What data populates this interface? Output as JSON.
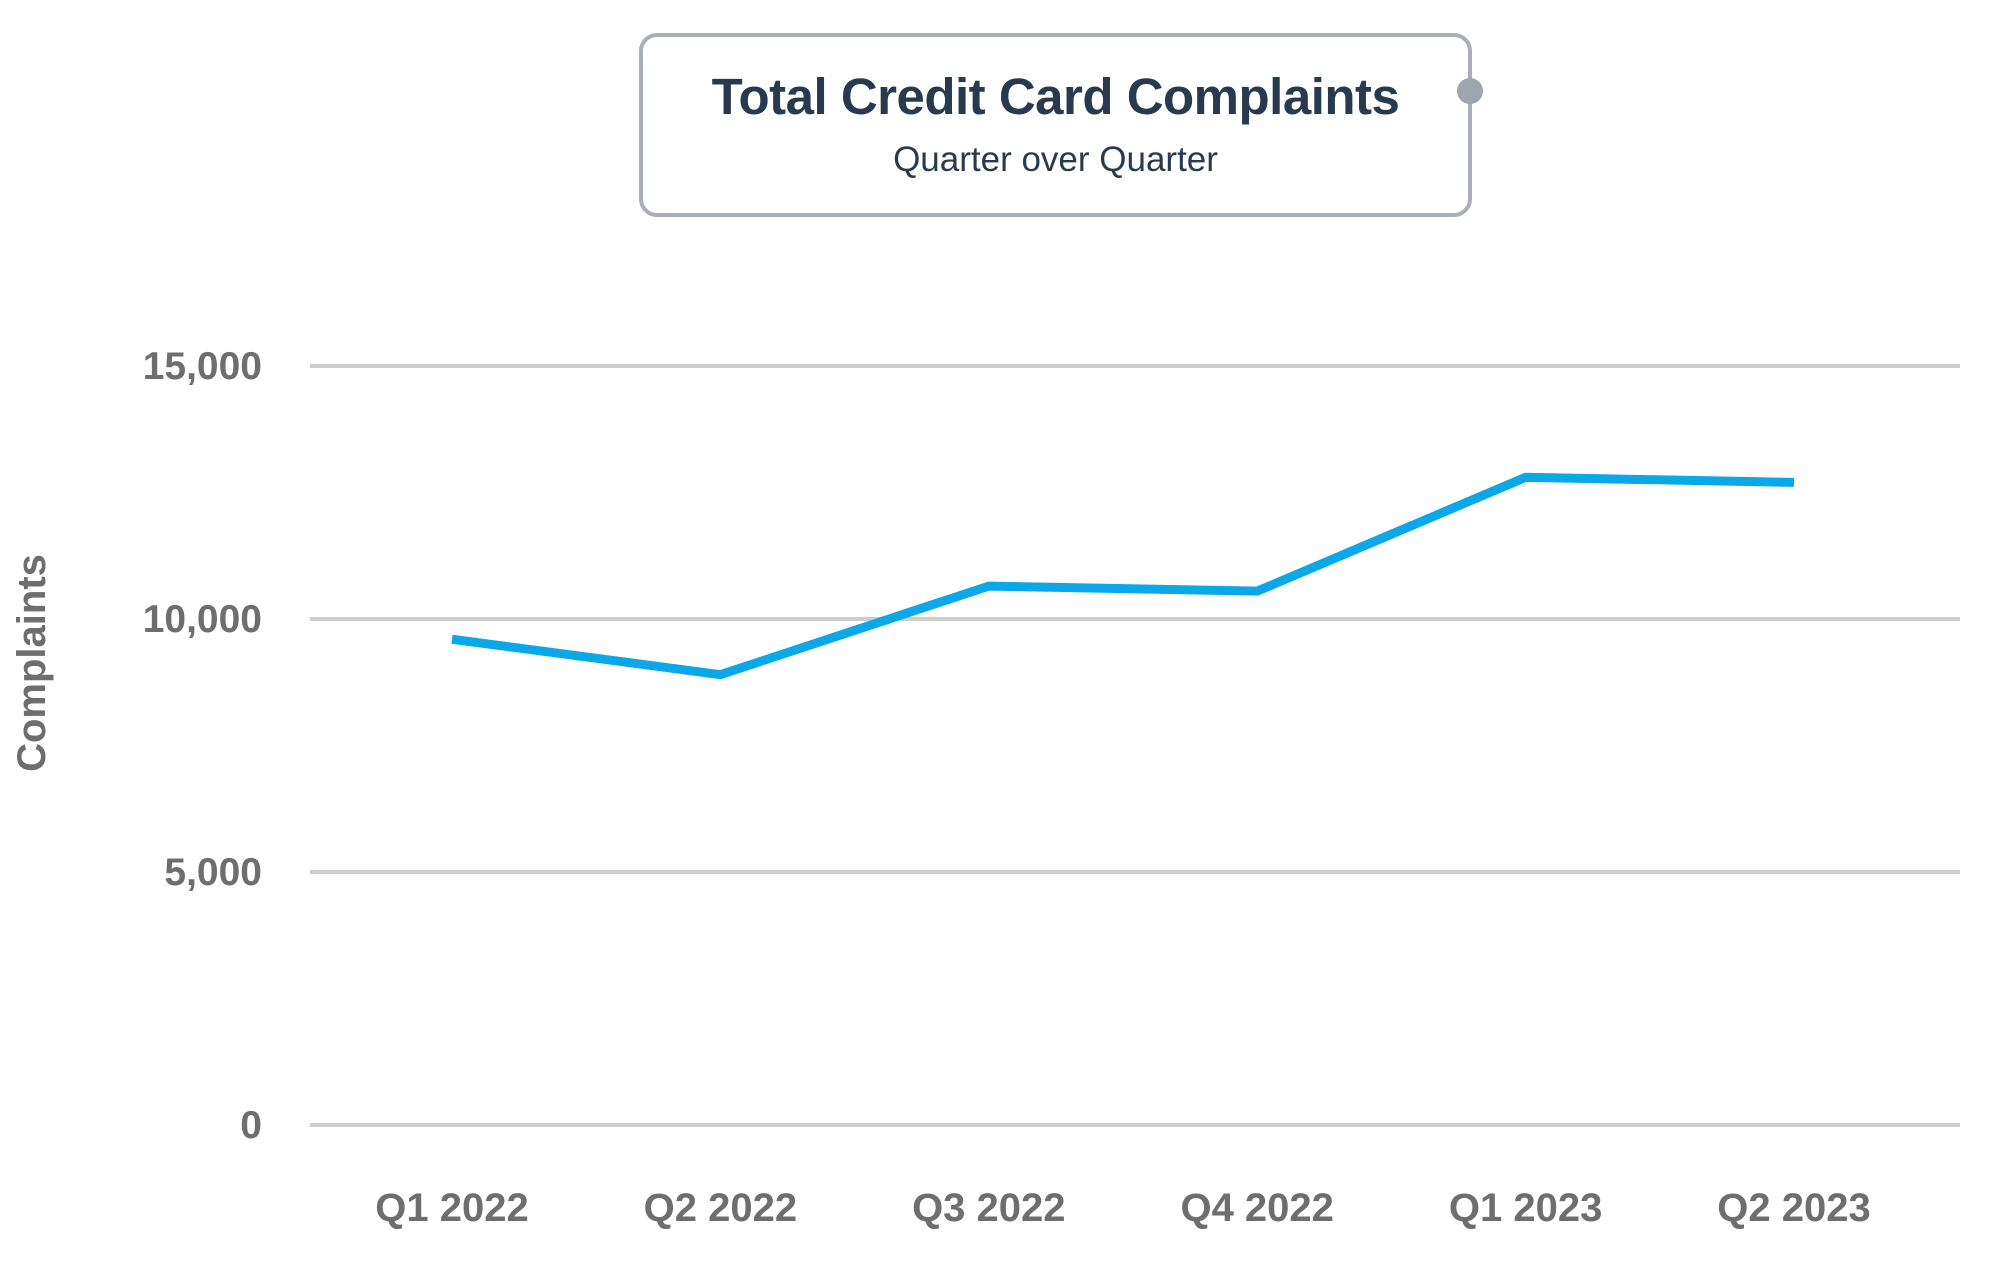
{
  "header": {
    "title": "Total Credit Card Complaints",
    "subtitle": "Quarter over Quarter"
  },
  "chart_data": {
    "type": "line",
    "title": "Total Credit Card Complaints",
    "subtitle": "Quarter over Quarter",
    "categories": [
      "Q1 2022",
      "Q2 2022",
      "Q3 2022",
      "Q4 2022",
      "Q1 2023",
      "Q2 2023"
    ],
    "values": [
      9600,
      8900,
      10650,
      10550,
      12800,
      12700
    ],
    "xlabel": "",
    "ylabel": "Complaints",
    "ylim": [
      0,
      15000
    ],
    "yticks": [
      0,
      5000,
      10000,
      15000
    ],
    "ytick_labels": [
      "0",
      "5,000",
      "10,000",
      "15,000"
    ],
    "grid": true,
    "legend": false
  },
  "colors": {
    "background": "#FFFFFF",
    "line": "#0AA8E8",
    "grid": "#CDCDCD",
    "axis_text": "#6E6E6E",
    "title_text": "#293A4D",
    "box_border": "#A9AFB6",
    "handle_dot": "#9EA5AD"
  }
}
